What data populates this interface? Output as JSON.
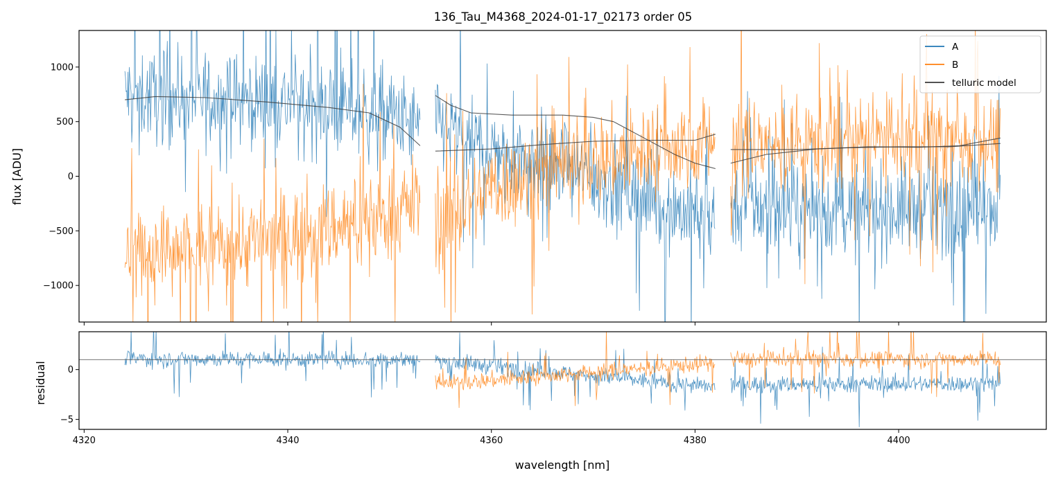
{
  "chart_data": [
    {
      "type": "line",
      "panel": "top",
      "title": "136_Tau_M4368_2024-01-17_02173  order 05",
      "xlabel": "",
      "ylabel": "flux [ADU]",
      "xlim": [
        4319.5,
        4414.5
      ],
      "ylim": [
        -1335,
        1335
      ],
      "yticks": [
        1000,
        500,
        0,
        -500,
        -1000
      ],
      "ytick_labels": [
        "1000",
        "500",
        "0",
        "−500",
        "−1000"
      ],
      "xticks": [
        4320,
        4340,
        4360,
        4380,
        4400
      ],
      "segments": [
        [
          4324.0,
          4353.0
        ],
        [
          4354.5,
          4382.0
        ],
        [
          4383.5,
          4410.0
        ]
      ],
      "legend": {
        "placement": "top-right",
        "entries": [
          {
            "label": "A",
            "color": "#1f77b4"
          },
          {
            "label": "B",
            "color": "#ff7f0e"
          },
          {
            "label": "telluric model",
            "color": "#3a3a3a"
          }
        ]
      },
      "series": [
        {
          "name": "A",
          "color": "#1f77b4",
          "segments": [
            {
              "x": [
                4324,
                4330,
                4340,
                4350,
                4353
              ],
              "y": [
                750,
                720,
                680,
                560,
                420
              ]
            },
            {
              "x": [
                4354.5,
                4358,
                4365,
                4372,
                4378,
                4382
              ],
              "y": [
                520,
                280,
                150,
                -80,
                -300,
                -400
              ]
            },
            {
              "x": [
                4383.5,
                4390,
                4400,
                4410
              ],
              "y": [
                -250,
                -330,
                -300,
                -260
              ]
            }
          ]
        },
        {
          "name": "B",
          "color": "#ff7f0e",
          "segments": [
            {
              "x": [
                4324,
                4330,
                4340,
                4350,
                4353
              ],
              "y": [
                -700,
                -680,
                -550,
                -350,
                -200
              ]
            },
            {
              "x": [
                4354.5,
                4360,
                4370,
                4380,
                4382
              ],
              "y": [
                -500,
                -100,
                150,
                300,
                350
              ]
            },
            {
              "x": [
                4383.5,
                4390,
                4400,
                4410
              ],
              "y": [
                250,
                300,
                320,
                330
              ]
            }
          ]
        },
        {
          "name": "telluric model",
          "color": "#3a3a3a",
          "lines": [
            {
              "x": [
                4324,
                4327,
                4332,
                4338,
                4344,
                4348,
                4351,
                4353
              ],
              "y": [
                700,
                730,
                720,
                680,
                630,
                580,
                450,
                280
              ]
            },
            {
              "x": [
                4354.5,
                4356,
                4358,
                4362,
                4367,
                4370,
                4372,
                4375,
                4378,
                4380,
                4382
              ],
              "y": [
                740,
                650,
                580,
                560,
                560,
                540,
                500,
                350,
                200,
                120,
                70
              ]
            },
            {
              "x": [
                4354.5,
                4360,
                4365,
                4370,
                4375,
                4380,
                4382
              ],
              "y": [
                230,
                250,
                290,
                320,
                330,
                330,
                385
              ]
            },
            {
              "x": [
                4383.5,
                4387,
                4392,
                4397,
                4402,
                4406,
                4410
              ],
              "y": [
                120,
                200,
                250,
                270,
                265,
                280,
                350
              ]
            },
            {
              "x": [
                4383.5,
                4390,
                4395,
                4400,
                4405,
                4410
              ],
              "y": [
                245,
                245,
                260,
                270,
                270,
                300
              ]
            }
          ]
        }
      ]
    },
    {
      "type": "line",
      "panel": "bottom",
      "xlabel": "wavelength [nm]",
      "ylabel": "residual",
      "xlim": [
        4319.5,
        4414.5
      ],
      "ylim": [
        -6.0,
        3.8
      ],
      "yticks": [
        0,
        -5
      ],
      "ytick_labels": [
        "0",
        "−5"
      ],
      "xticks": [
        4320,
        4340,
        4360,
        4380,
        4400
      ],
      "xtick_labels": [
        "4320",
        "4340",
        "4360",
        "4380",
        "4400"
      ],
      "reference_line": 1.0,
      "series": [
        {
          "name": "A",
          "color": "#1f77b4",
          "segments": [
            {
              "x": [
                4324,
                4353
              ],
              "y": [
                1.1,
                1.0
              ]
            },
            {
              "x": [
                4354.5,
                4382
              ],
              "y": [
                0.9,
                -1.8
              ]
            },
            {
              "x": [
                4383.5,
                4410
              ],
              "y": [
                -1.5,
                -1.4
              ]
            }
          ]
        },
        {
          "name": "B",
          "color": "#ff7f0e",
          "segments": [
            {
              "x": [
                4354.5,
                4382
              ],
              "y": [
                -1.5,
                0.7
              ]
            },
            {
              "x": [
                4383.5,
                4410
              ],
              "y": [
                1.0,
                1.1
              ]
            }
          ]
        }
      ]
    }
  ]
}
